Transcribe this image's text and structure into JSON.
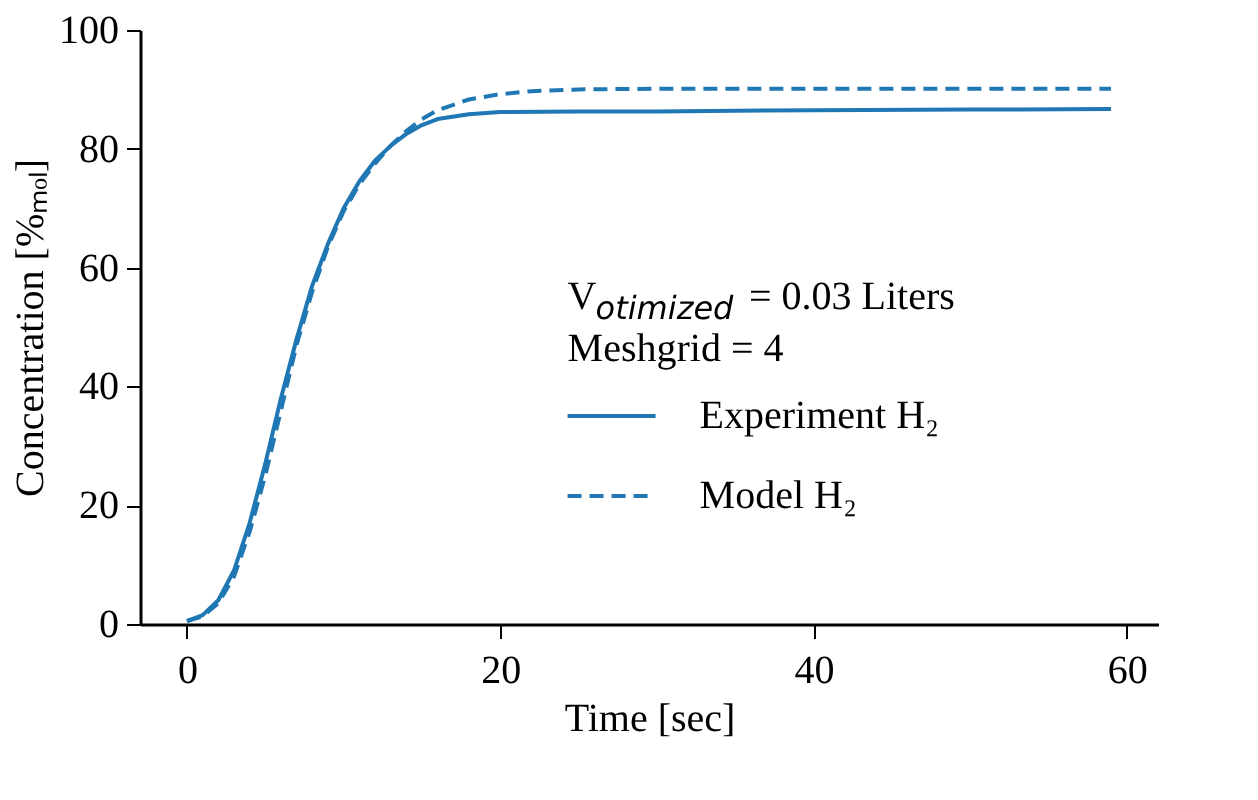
{
  "chart_data": {
    "type": "line",
    "xlabel": "Time [sec]",
    "ylabel": "Concentration [%ₘₒₗ]",
    "xlim": [
      -3,
      62
    ],
    "ylim": [
      0,
      100
    ],
    "xticks": [
      0,
      20,
      40,
      60
    ],
    "yticks": [
      0,
      20,
      40,
      60,
      80,
      100
    ],
    "grid": false,
    "legend": "right",
    "marker": "none",
    "annotations": [
      "V$_{otimized}$ = 0.03 Liters",
      "Meshgrid = 4"
    ],
    "series": [
      {
        "name": "Experiment H₂",
        "color": "#1f77b4",
        "line_style": "solid",
        "x": [
          0,
          1,
          2,
          3,
          4,
          5,
          6,
          7,
          8,
          9,
          10,
          11,
          12,
          13,
          14,
          15,
          16,
          18,
          20,
          25,
          30,
          40,
          50,
          59
        ],
        "values": [
          0.5,
          1.5,
          4,
          9,
          17,
          27,
          38,
          48,
          57,
          64,
          70,
          74.5,
          78,
          80.5,
          82.5,
          84,
          85,
          85.8,
          86.2,
          86.3,
          86.3,
          86.5,
          86.6,
          86.7
        ]
      },
      {
        "name": "Model H₂",
        "color": "#1f77b4",
        "line_style": "dashed",
        "x": [
          0,
          1,
          2,
          3,
          4,
          5,
          6,
          7,
          8,
          9,
          10,
          11,
          12,
          13,
          14,
          15,
          16,
          18,
          20,
          22,
          25,
          30,
          59
        ],
        "values": [
          0.5,
          1.3,
          3.5,
          8,
          15.5,
          25,
          36,
          47,
          56,
          63.5,
          69.5,
          74,
          77.5,
          80.5,
          83,
          85,
          86.5,
          88.3,
          89.2,
          89.7,
          90,
          90.1,
          90.1
        ]
      }
    ]
  }
}
